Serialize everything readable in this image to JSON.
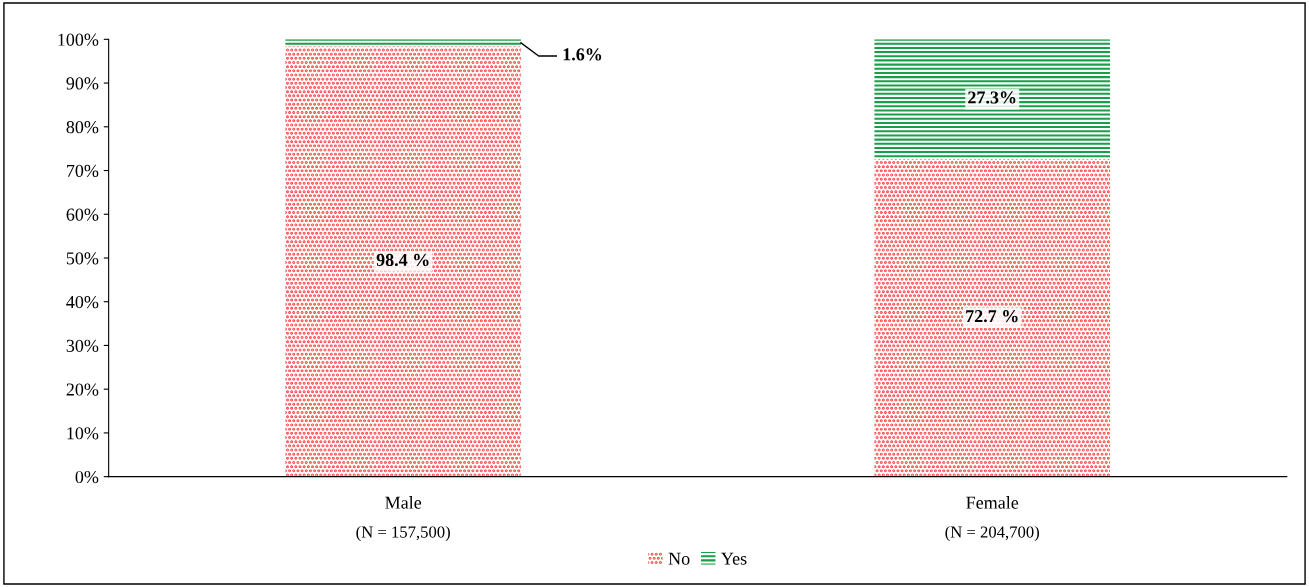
{
  "chart_data": {
    "type": "bar",
    "stacked": true,
    "categories": [
      "Male",
      "Female"
    ],
    "series": [
      {
        "name": "No",
        "color": "#ff3333",
        "values": [
          98.4,
          72.7
        ],
        "value_labels": [
          "98.4 %",
          "72.7 %"
        ]
      },
      {
        "name": "Yes",
        "color": "#1a9e4a",
        "values": [
          1.6,
          27.3
        ],
        "value_labels": [
          "1.6%",
          "27.3%"
        ]
      }
    ],
    "ylim": [
      0,
      100
    ],
    "yticks": [
      {
        "value": 0,
        "label": "0%"
      },
      {
        "value": 10,
        "label": "10%"
      },
      {
        "value": 20,
        "label": "20%"
      },
      {
        "value": 30,
        "label": "30%"
      },
      {
        "value": 40,
        "label": "40%"
      },
      {
        "value": 50,
        "label": "50%"
      },
      {
        "value": 60,
        "label": "60%"
      },
      {
        "value": 70,
        "label": "70%"
      },
      {
        "value": 80,
        "label": "80%"
      },
      {
        "value": 90,
        "label": "90%"
      },
      {
        "value": 100,
        "label": "100%"
      }
    ],
    "annotations": [
      "(N = 157,500)",
      "(N = 204,700)"
    ],
    "legend": "bottom",
    "grid": false
  }
}
